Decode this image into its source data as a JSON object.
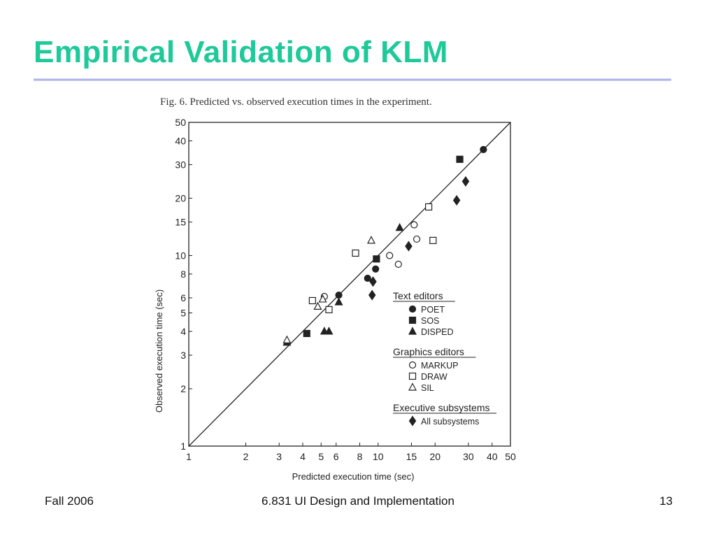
{
  "slide": {
    "title": "Empirical Validation of KLM",
    "footer_left": "Fall 2006",
    "footer_center": "6.831 UI Design and Implementation",
    "footer_right": "13"
  },
  "colors": {
    "title": "#1ec99a",
    "rule": "#9ea3e0",
    "ink": "#222222"
  },
  "chart_data": {
    "type": "scatter",
    "title": "Fig. 6.  Predicted vs. observed execution times in the experiment.",
    "xlabel": "Predicted execution time (sec)",
    "ylabel": "Observed execution time (sec)",
    "xscale": "log",
    "yscale": "log",
    "xlim": [
      1,
      50
    ],
    "ylim": [
      1,
      50
    ],
    "xticks": [
      1,
      2,
      3,
      4,
      5,
      6,
      8,
      10,
      15,
      20,
      30,
      40,
      50
    ],
    "yticks": [
      1,
      2,
      3,
      4,
      5,
      6,
      8,
      10,
      15,
      20,
      30,
      40,
      50
    ],
    "grid": false,
    "reference_line": "y = x",
    "legend_position": "bottom-right",
    "legend_groups": [
      {
        "title": "Text editors",
        "series": [
          "POET",
          "SOS",
          "DISPED"
        ]
      },
      {
        "title": "Graphics editors",
        "series": [
          "MARKUP",
          "DRAW",
          "SIL"
        ]
      },
      {
        "title": "Executive subsystems",
        "series": [
          "All subsystems"
        ]
      }
    ],
    "series": [
      {
        "name": "POET",
        "marker": "filled-circle",
        "points": [
          [
            6.2,
            6.2
          ],
          [
            8.8,
            7.6
          ],
          [
            9.7,
            8.5
          ],
          [
            36,
            36
          ]
        ]
      },
      {
        "name": "SOS",
        "marker": "filled-square",
        "points": [
          [
            4.2,
            3.9
          ],
          [
            9.8,
            9.6
          ],
          [
            27,
            32
          ]
        ]
      },
      {
        "name": "DISPED",
        "marker": "filled-triangle",
        "points": [
          [
            3.3,
            3.5
          ],
          [
            5.2,
            4.0
          ],
          [
            5.5,
            4.0
          ],
          [
            6.2,
            5.7
          ],
          [
            13,
            14
          ]
        ]
      },
      {
        "name": "MARKUP",
        "marker": "open-circle",
        "points": [
          [
            5.2,
            6.1
          ],
          [
            11.5,
            10
          ],
          [
            12.8,
            9
          ],
          [
            15.5,
            14.5
          ],
          [
            16,
            12.2
          ]
        ]
      },
      {
        "name": "DRAW",
        "marker": "open-square",
        "points": [
          [
            4.5,
            5.8
          ],
          [
            5.5,
            5.2
          ],
          [
            7.6,
            10.3
          ],
          [
            18.5,
            18
          ],
          [
            19.5,
            12
          ]
        ]
      },
      {
        "name": "SIL",
        "marker": "open-triangle",
        "points": [
          [
            3.3,
            3.6
          ],
          [
            4.8,
            5.4
          ],
          [
            5.1,
            5.9
          ],
          [
            9.2,
            12
          ]
        ]
      },
      {
        "name": "All subsystems",
        "marker": "filled-diamond",
        "points": [
          [
            9.3,
            6.2
          ],
          [
            9.4,
            7.3
          ],
          [
            14.5,
            11.2
          ],
          [
            26,
            19.5
          ],
          [
            29,
            24.5
          ]
        ]
      }
    ]
  }
}
